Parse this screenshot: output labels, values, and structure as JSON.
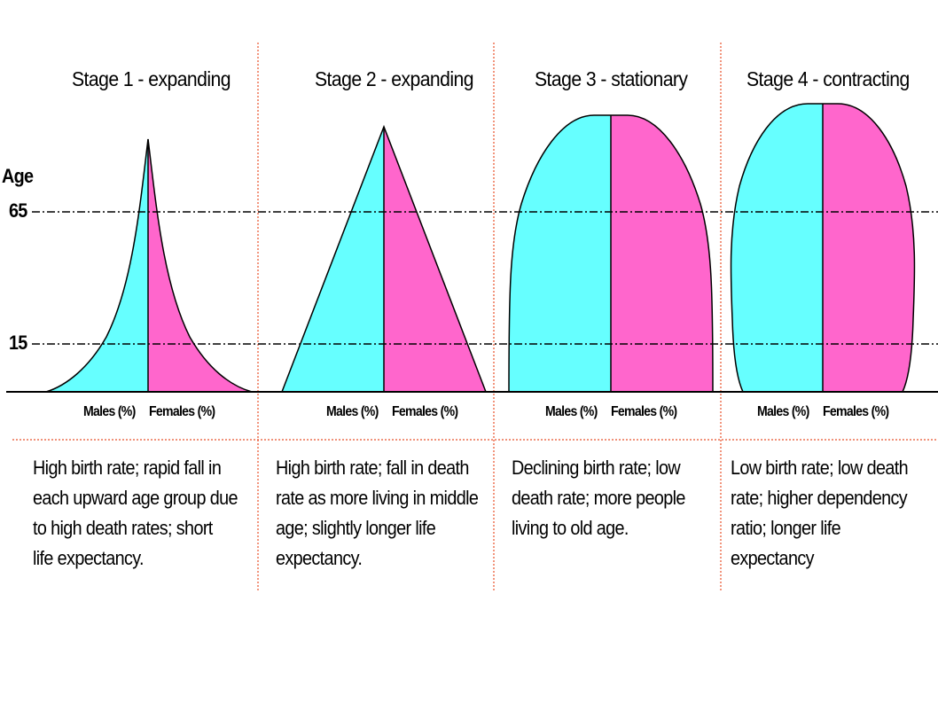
{
  "axis": {
    "y_label": "Age",
    "tick_65": "65",
    "tick_15": "15"
  },
  "colors": {
    "males": "#66ffff",
    "females": "#ff66cc",
    "divider": "#e8502a"
  },
  "stages": [
    {
      "title": "Stage 1 - expanding",
      "males_label": "Males (%)",
      "females_label": "Females (%)",
      "description_lines": [
        "High birth rate; rapid fall in",
        "each upward age group due",
        "to high death rates; short",
        "life expectancy."
      ]
    },
    {
      "title": "Stage 2 - expanding",
      "males_label": "Males (%)",
      "females_label": "Females (%)",
      "description_lines": [
        "High birth rate; fall in death",
        "rate as more living in middle",
        "age; slightly longer life",
        "expectancy."
      ]
    },
    {
      "title": "Stage 3 - stationary",
      "males_label": "Males (%)",
      "females_label": "Females (%)",
      "description_lines": [
        "Declining birth rate; low",
        "death rate; more people",
        "living to old age."
      ]
    },
    {
      "title": "Stage 4 - contracting",
      "males_label": "Males (%)",
      "females_label": "Females (%)",
      "description_lines": [
        "Low birth rate; low death",
        "rate; higher dependency",
        "ratio; longer life expectancy"
      ]
    }
  ]
}
